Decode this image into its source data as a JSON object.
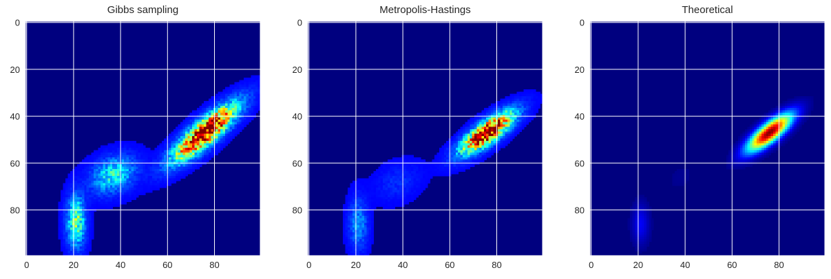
{
  "chart_data": [
    {
      "type": "heatmap",
      "title": "Gibbs sampling",
      "xlim": [
        0,
        99
      ],
      "ylim": [
        99,
        0
      ],
      "xticks": [
        "0",
        "20",
        "40",
        "60",
        "80"
      ],
      "yticks": [
        "0",
        "20",
        "40",
        "60",
        "80"
      ],
      "colormap": "jet",
      "grid": true,
      "grid_color": "#ffffff",
      "background_color": "#00007f",
      "render": "sampled",
      "components": [
        {
          "mx": 76,
          "my": 47,
          "sx": 8.5,
          "sy": 7.5,
          "rho": -0.85,
          "w": 1.0
        },
        {
          "mx": 37,
          "my": 65,
          "sx": 6,
          "sy": 5,
          "rho": -0.3,
          "w": 0.28
        },
        {
          "mx": 21,
          "my": 85,
          "sx": 2.5,
          "sy": 7,
          "rho": 0.0,
          "w": 0.38
        }
      ]
    },
    {
      "type": "heatmap",
      "title": "Metropolis-Hastings",
      "xlim": [
        0,
        99
      ],
      "ylim": [
        99,
        0
      ],
      "xticks": [
        "0",
        "20",
        "40",
        "60",
        "80"
      ],
      "yticks": [
        "0",
        "20",
        "40",
        "60",
        "80"
      ],
      "colormap": "jet",
      "grid": true,
      "grid_color": "#ffffff",
      "background_color": "#00007f",
      "render": "sampled",
      "components": [
        {
          "mx": 76,
          "my": 47,
          "sx": 7,
          "sy": 5.5,
          "rho": -0.8,
          "w": 1.0
        },
        {
          "mx": 38,
          "my": 68,
          "sx": 6,
          "sy": 5,
          "rho": -0.3,
          "w": 0.05
        },
        {
          "mx": 21,
          "my": 86,
          "sx": 2.5,
          "sy": 7,
          "rho": 0.0,
          "w": 0.16
        }
      ]
    },
    {
      "type": "heatmap",
      "title": "Theoretical",
      "xlim": [
        0,
        99
      ],
      "ylim": [
        99,
        0
      ],
      "xticks": [
        "0",
        "20",
        "40",
        "60",
        "80"
      ],
      "yticks": [
        "0",
        "20",
        "40",
        "60",
        "80"
      ],
      "colormap": "jet",
      "grid": true,
      "grid_color": "#ffffff",
      "background_color": "#00007f",
      "render": "smooth",
      "components": [
        {
          "mx": 76,
          "my": 47,
          "sx": 6.5,
          "sy": 5.5,
          "rho": -0.8,
          "w": 1.0
        },
        {
          "mx": 38,
          "my": 66,
          "sx": 5,
          "sy": 5,
          "rho": -0.3,
          "w": 0.02
        },
        {
          "mx": 21,
          "my": 86,
          "sx": 2.5,
          "sy": 6,
          "rho": 0.0,
          "w": 0.12
        }
      ]
    }
  ]
}
